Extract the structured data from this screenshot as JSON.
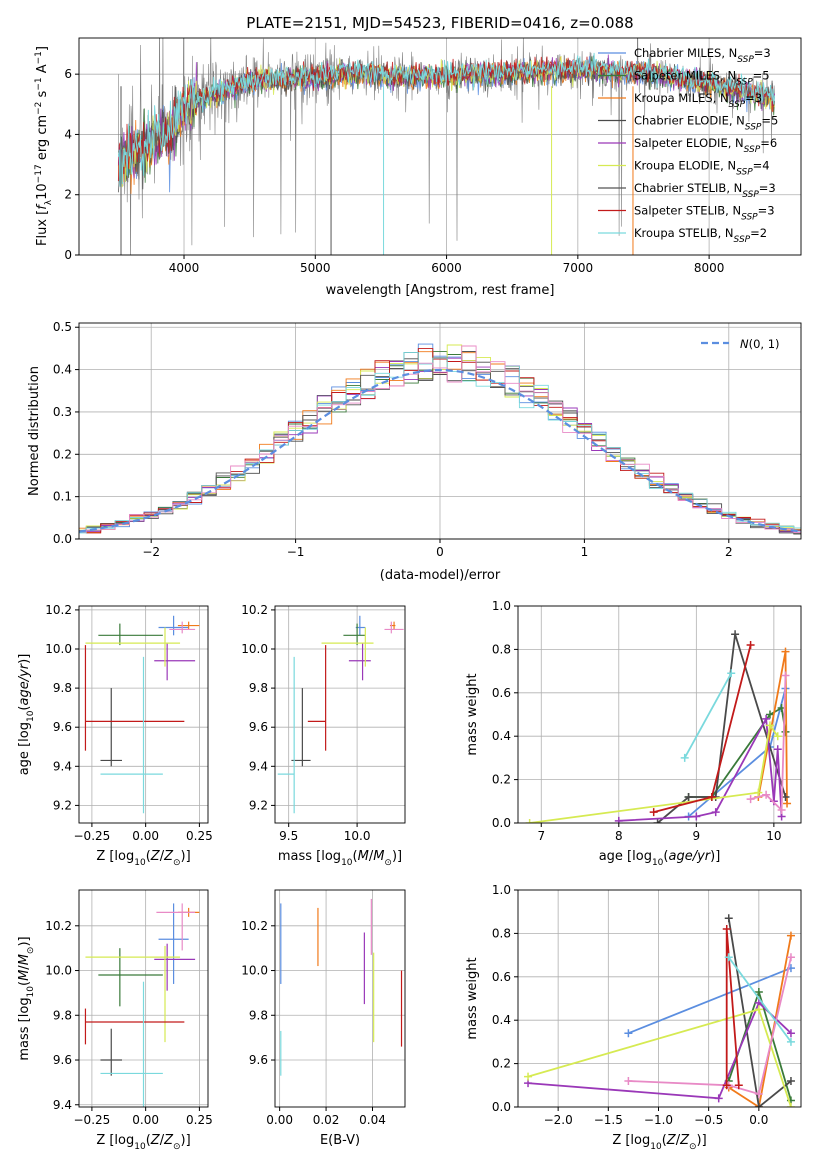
{
  "page_title": "PLATE=2151, MJD=54523, FIBERID=0416, z=0.088",
  "colors": {
    "Chabrier MILES": "#5b8ee0",
    "Salpeter MILES": "#3a7a3a",
    "Kroupa MILES": "#f07a1a",
    "Chabrier ELODIE": "#4a4a4a",
    "Salpeter ELODIE": "#9a38b8",
    "Kroupa ELODIE": "#d6ea52",
    "Chabrier STELIB": "#555555",
    "Salpeter STELIB": "#c21a1a",
    "Kroupa STELIB": "#7ad9dd",
    "pink": "#e88ac6",
    "normal": "#5b8ee0",
    "data": "#808080"
  },
  "chart_data": [
    {
      "id": "spectrum",
      "type": "line",
      "title": "PLATE=2151, MJD=54523, FIBERID=0416, z=0.088",
      "xlabel": "wavelength [Angstrom, rest frame]",
      "ylabel": "Flux [f_λ 10^-17 erg cm^-2 s^-1 A^-1]",
      "xlim": [
        3200,
        8700
      ],
      "ylim": [
        0,
        7.2
      ],
      "xticks": [
        "4000",
        "5000",
        "6000",
        "7000",
        "8000"
      ],
      "yticks": [
        "0",
        "2",
        "4",
        "6"
      ],
      "legend_position": "right",
      "legend": [
        {
          "label": "Chabrier MILES, N",
          "sub": "SSP",
          "suffix": "=3",
          "color": "#5b8ee0"
        },
        {
          "label": "Salpeter MILES, N",
          "sub": "SSP",
          "suffix": "=5",
          "color": "#3a7a3a"
        },
        {
          "label": "Kroupa MILES, N",
          "sub": "SSP",
          "suffix": "=3",
          "color": "#f07a1a"
        },
        {
          "label": "Chabrier ELODIE, N",
          "sub": "SSP",
          "suffix": "=5",
          "color": "#4a4a4a"
        },
        {
          "label": "Salpeter ELODIE, N",
          "sub": "SSP",
          "suffix": "=6",
          "color": "#9a38b8"
        },
        {
          "label": "Kroupa ELODIE, N",
          "sub": "SSP",
          "suffix": "=4",
          "color": "#d6ea52"
        },
        {
          "label": "Chabrier STELIB, N",
          "sub": "SSP",
          "suffix": "=3",
          "color": "#555555"
        },
        {
          "label": "Salpeter STELIB, N",
          "sub": "SSP",
          "suffix": "=3",
          "color": "#c21a1a"
        },
        {
          "label": "Kroupa STELIB, N",
          "sub": "SSP",
          "suffix": "=2",
          "color": "#7ad9dd"
        }
      ],
      "model_curve": {
        "x": [
          3500,
          3600,
          3700,
          3800,
          3900,
          4000,
          4100,
          4200,
          4300,
          4400,
          4500,
          4600,
          4800,
          5000,
          5200,
          5400,
          5600,
          5800,
          6000,
          6200,
          6400,
          6600,
          6800,
          7000,
          7200,
          7400,
          7600,
          7800,
          8000,
          8200,
          8400,
          8500
        ],
        "y": [
          3.0,
          3.3,
          3.6,
          3.9,
          4.1,
          4.9,
          5.1,
          5.3,
          5.4,
          5.6,
          5.75,
          5.8,
          5.85,
          5.9,
          6.0,
          6.05,
          5.9,
          5.95,
          5.9,
          6.0,
          6.0,
          6.1,
          6.1,
          6.15,
          6.1,
          6.05,
          6.0,
          5.85,
          5.7,
          5.5,
          5.3,
          5.2
        ]
      }
    },
    {
      "id": "residuals",
      "type": "histogram",
      "xlabel": "(data-model)/error",
      "ylabel": "Normed distribution",
      "xlim": [
        -2.5,
        2.5
      ],
      "ylim": [
        0,
        0.51
      ],
      "xticks": [
        "−2",
        "−1",
        "0",
        "1",
        "2"
      ],
      "yticks": [
        "0.0",
        "0.1",
        "0.2",
        "0.3",
        "0.4",
        "0.5"
      ],
      "legend_position": "top-right",
      "legend": [
        {
          "label": "N(0, 1)",
          "style": "dashed",
          "color": "#5b8ee0"
        }
      ],
      "normal_curve": {
        "mean": 0,
        "sigma": 1
      },
      "bin_width": 0.1
    },
    {
      "id": "age-vs-Z",
      "type": "errorbar",
      "xlabel": "Z [log10(Z/Z⊙)]",
      "ylabel": "age  [log10(age/yr)]",
      "xlim": [
        -0.31,
        0.29
      ],
      "ylim": [
        9.11,
        10.22
      ],
      "xticks": [
        "−0.25",
        "0.00",
        "0.25"
      ],
      "yticks": [
        "9.2",
        "9.4",
        "9.6",
        "9.8",
        "10.0",
        "10.2"
      ],
      "points": [
        {
          "series": "Chabrier MILES",
          "x": 0.13,
          "xerr": [
            0.07,
            0.07
          ],
          "y": 10.11,
          "yerr": [
            0.04,
            0.06
          ]
        },
        {
          "series": "Salpeter MILES",
          "x": -0.12,
          "xerr": [
            0.1,
            0.2
          ],
          "y": 10.07,
          "yerr": [
            0.05,
            0.06
          ]
        },
        {
          "series": "Kroupa MILES",
          "x": 0.2,
          "xerr": [
            0.05,
            0.05
          ],
          "y": 10.12,
          "yerr": [
            0.02,
            0.02
          ]
        },
        {
          "series": "Chabrier ELODIE",
          "x": -0.16,
          "xerr": [
            0.05,
            0.05
          ],
          "y": 9.43,
          "yerr": [
            0.03,
            0.37
          ]
        },
        {
          "series": "Salpeter ELODIE",
          "x": 0.1,
          "xerr": [
            0.06,
            0.13
          ],
          "y": 9.94,
          "yerr": [
            0.1,
            0.09
          ]
        },
        {
          "series": "Kroupa ELODIE",
          "x": 0.09,
          "xerr": [
            0.37,
            0.07
          ],
          "y": 10.03,
          "yerr": [
            0.12,
            0.08
          ]
        },
        {
          "series": "pink",
          "x": 0.17,
          "xerr": [
            0.06,
            0.06
          ],
          "y": 10.1,
          "yerr": [
            0.02,
            0.04
          ]
        },
        {
          "series": "Salpeter STELIB",
          "x": -0.28,
          "xerr": [
            0.0,
            0.46
          ],
          "y": 9.63,
          "yerr": [
            0.15,
            0.39
          ]
        },
        {
          "series": "Kroupa STELIB",
          "x": -0.01,
          "xerr": [
            0.2,
            0.09
          ],
          "y": 9.36,
          "yerr": [
            0.2,
            0.6
          ]
        }
      ]
    },
    {
      "id": "age-vs-mass",
      "type": "errorbar",
      "xlabel": "mass [log10(M/M⊙)]",
      "ylabel": "",
      "xlim": [
        9.4,
        10.35
      ],
      "ylim": [
        9.11,
        10.22
      ],
      "xticks": [
        "9.5",
        "10.0"
      ],
      "yticks": [
        "9.2",
        "9.4",
        "9.6",
        "9.8",
        "10.0",
        "10.2"
      ],
      "points": [
        {
          "series": "Chabrier MILES",
          "x": 10.02,
          "xerr": [
            0.03,
            0.04
          ],
          "y": 10.11,
          "yerr": [
            0.04,
            0.06
          ]
        },
        {
          "series": "Salpeter MILES",
          "x": 10.0,
          "xerr": [
            0.1,
            0.06
          ],
          "y": 10.07,
          "yerr": [
            0.05,
            0.06
          ]
        },
        {
          "series": "Kroupa MILES",
          "x": 10.27,
          "xerr": [
            0.03,
            0.01
          ],
          "y": 10.12,
          "yerr": [
            0.02,
            0.02
          ]
        },
        {
          "series": "Chabrier ELODIE",
          "x": 9.6,
          "xerr": [
            0.08,
            0.06
          ],
          "y": 9.43,
          "yerr": [
            0.03,
            0.37
          ]
        },
        {
          "series": "Salpeter ELODIE",
          "x": 10.04,
          "xerr": [
            0.1,
            0.06
          ],
          "y": 9.94,
          "yerr": [
            0.1,
            0.09
          ]
        },
        {
          "series": "Kroupa ELODIE",
          "x": 10.06,
          "xerr": [
            0.32,
            0.06
          ],
          "y": 10.03,
          "yerr": [
            0.12,
            0.08
          ]
        },
        {
          "series": "pink",
          "x": 10.25,
          "xerr": [
            0.05,
            0.09
          ],
          "y": 10.1,
          "yerr": [
            0.02,
            0.04
          ]
        },
        {
          "series": "Salpeter STELIB",
          "x": 9.77,
          "xerr": [
            0.13,
            0.0
          ],
          "y": 9.63,
          "yerr": [
            0.15,
            0.39
          ]
        },
        {
          "series": "Kroupa STELIB",
          "x": 9.54,
          "xerr": [
            0.12,
            0.0
          ],
          "y": 9.36,
          "yerr": [
            0.2,
            0.6
          ]
        }
      ]
    },
    {
      "id": "weight-vs-age",
      "type": "line",
      "xlabel": "age  [log10(age/yr)]",
      "ylabel": "mass weight",
      "xlim": [
        6.7,
        10.35
      ],
      "ylim": [
        0,
        1
      ],
      "xticks": [
        "7",
        "8",
        "9",
        "10"
      ],
      "yticks": [
        "0.0",
        "0.2",
        "0.4",
        "0.6",
        "0.8",
        "1.0"
      ],
      "series": [
        {
          "name": "Chabrier MILES",
          "x": [
            8.9,
            9.95,
            10.15
          ],
          "y": [
            0.03,
            0.35,
            0.62
          ]
        },
        {
          "name": "Salpeter MILES",
          "x": [
            8.9,
            9.2,
            9.95,
            10.1,
            10.15
          ],
          "y": [
            0.12,
            0.12,
            0.5,
            0.53,
            0.42
          ]
        },
        {
          "name": "Kroupa MILES",
          "x": [
            9.8,
            10.15,
            10.17
          ],
          "y": [
            0.12,
            0.79,
            0.09
          ]
        },
        {
          "name": "Chabrier ELODIE",
          "x": [
            8.5,
            8.9,
            9.25,
            9.5,
            10.15
          ],
          "y": [
            0.0,
            0.12,
            0.12,
            0.87,
            0.12
          ]
        },
        {
          "name": "Salpeter ELODIE",
          "x": [
            8.0,
            9.0,
            9.25,
            9.9,
            10.0,
            10.05,
            10.1
          ],
          "y": [
            0.01,
            0.03,
            0.05,
            0.48,
            0.1,
            0.34,
            0.03
          ]
        },
        {
          "name": "Kroupa ELODIE",
          "x": [
            6.85,
            9.8,
            9.95,
            10.05
          ],
          "y": [
            0.0,
            0.14,
            0.45,
            0.4
          ]
        },
        {
          "name": "pink",
          "x": [
            9.7,
            9.9,
            10.1,
            10.15
          ],
          "y": [
            0.11,
            0.13,
            0.06,
            0.68
          ]
        },
        {
          "name": "Salpeter STELIB",
          "x": [
            8.45,
            9.2,
            9.7
          ],
          "y": [
            0.05,
            0.12,
            0.82
          ]
        },
        {
          "name": "Kroupa STELIB",
          "x": [
            8.85,
            9.45
          ],
          "y": [
            0.3,
            0.69
          ]
        }
      ]
    },
    {
      "id": "mass-vs-Z",
      "type": "errorbar",
      "xlabel": "Z [log10(Z/Z⊙)]",
      "ylabel": "mass [log10(M/M⊙)]",
      "xlim": [
        -0.31,
        0.29
      ],
      "ylim": [
        9.39,
        10.36
      ],
      "xticks": [
        "−0.25",
        "0.00",
        "0.25"
      ],
      "yticks": [
        "9.4",
        "9.6",
        "9.8",
        "10.0",
        "10.2"
      ],
      "points": [
        {
          "series": "Chabrier MILES",
          "x": 0.13,
          "xerr": [
            0.07,
            0.07
          ],
          "y": 10.14,
          "yerr": [
            0.2,
            0.16
          ]
        },
        {
          "series": "Salpeter MILES",
          "x": -0.12,
          "xerr": [
            0.1,
            0.2
          ],
          "y": 9.98,
          "yerr": [
            0.14,
            0.12
          ]
        },
        {
          "series": "Kroupa MILES",
          "x": 0.2,
          "xerr": [
            0.05,
            0.05
          ],
          "y": 10.26,
          "yerr": [
            0.02,
            0.02
          ]
        },
        {
          "series": "Chabrier ELODIE",
          "x": -0.16,
          "xerr": [
            0.05,
            0.05
          ],
          "y": 9.6,
          "yerr": [
            0.07,
            0.14
          ]
        },
        {
          "series": "Salpeter ELODIE",
          "x": 0.1,
          "xerr": [
            0.06,
            0.13
          ],
          "y": 10.05,
          "yerr": [
            0.14,
            0.07
          ]
        },
        {
          "series": "Kroupa ELODIE",
          "x": 0.09,
          "xerr": [
            0.37,
            0.07
          ],
          "y": 10.06,
          "yerr": [
            0.38,
            0.05
          ]
        },
        {
          "series": "pink",
          "x": 0.17,
          "xerr": [
            0.12,
            0.06
          ],
          "y": 10.26,
          "yerr": [
            0.17,
            0.04
          ]
        },
        {
          "series": "Salpeter STELIB",
          "x": -0.28,
          "xerr": [
            0.0,
            0.46
          ],
          "y": 9.77,
          "yerr": [
            0.1,
            0.06
          ]
        },
        {
          "series": "Kroupa STELIB",
          "x": -0.01,
          "xerr": [
            0.2,
            0.09
          ],
          "y": 9.54,
          "yerr": [
            0.15,
            0.41
          ]
        }
      ]
    },
    {
      "id": "mass-vs-ebv",
      "type": "errorbar",
      "xlabel": "E(B-V)",
      "ylabel": "",
      "xlim": [
        -0.002,
        0.054
      ],
      "ylim": [
        9.39,
        10.36
      ],
      "xticks": [
        "0.00",
        "0.02",
        "0.04"
      ],
      "yticks": [
        "9.6",
        "9.8",
        "10.0",
        "10.2"
      ],
      "points": [
        {
          "series": "Chabrier MILES",
          "x": 0.0005,
          "y": 10.14,
          "yerr": [
            0.2,
            0.16
          ]
        },
        {
          "series": "Kroupa MILES",
          "x": 0.0165,
          "y": 10.14,
          "yerr": [
            0.12,
            0.14
          ]
        },
        {
          "series": "Salpeter ELODIE",
          "x": 0.0365,
          "y": 10.01,
          "yerr": [
            0.16,
            0.16
          ]
        },
        {
          "series": "pink",
          "x": 0.0395,
          "y": 10.17,
          "yerr": [
            0.1,
            0.15
          ]
        },
        {
          "series": "Kroupa ELODIE",
          "x": 0.0405,
          "y": 9.88,
          "yerr": [
            0.2,
            0.2
          ]
        },
        {
          "series": "Salpeter STELIB",
          "x": 0.0525,
          "y": 9.83,
          "yerr": [
            0.17,
            0.17
          ]
        },
        {
          "series": "Kroupa STELIB",
          "x": 0.0005,
          "y": 9.63,
          "yerr": [
            0.1,
            0.1
          ]
        }
      ]
    },
    {
      "id": "weight-vs-Z",
      "type": "line",
      "xlabel": "Z [log10(Z/Z⊙)]",
      "ylabel": "mass weight",
      "xlim": [
        -2.4,
        0.42
      ],
      "ylim": [
        0,
        1
      ],
      "xticks": [
        "−2.0",
        "−1.5",
        "−1.0",
        "−0.5",
        "0.0"
      ],
      "yticks": [
        "0.0",
        "0.2",
        "0.4",
        "0.6",
        "0.8",
        "1.0"
      ],
      "series": [
        {
          "name": "Chabrier MILES",
          "x": [
            -1.3,
            0.32
          ],
          "y": [
            0.34,
            0.64
          ]
        },
        {
          "name": "Salpeter MILES",
          "x": [
            -0.3,
            0.0,
            0.32
          ],
          "y": [
            0.12,
            0.53,
            0.03
          ]
        },
        {
          "name": "Kroupa MILES",
          "x": [
            -0.3,
            0.0,
            0.32
          ],
          "y": [
            0.09,
            0.0,
            0.79
          ]
        },
        {
          "name": "Chabrier ELODIE",
          "x": [
            -0.3,
            0.0,
            0.32
          ],
          "y": [
            0.87,
            0.0,
            0.12
          ]
        },
        {
          "name": "Salpeter ELODIE",
          "x": [
            -2.3,
            -0.4,
            0.0,
            0.32
          ],
          "y": [
            0.11,
            0.04,
            0.48,
            0.34
          ]
        },
        {
          "name": "Kroupa ELODIE",
          "x": [
            -2.3,
            0.0,
            0.32
          ],
          "y": [
            0.14,
            0.45,
            0.0
          ]
        },
        {
          "name": "pink",
          "x": [
            -1.3,
            -0.3,
            0.0,
            0.32
          ],
          "y": [
            0.12,
            0.1,
            0.06,
            0.69
          ]
        },
        {
          "name": "Salpeter STELIB",
          "x": [
            -0.32,
            -0.32,
            -0.2
          ],
          "y": [
            0.1,
            0.82,
            0.1
          ]
        },
        {
          "name": "Kroupa STELIB",
          "x": [
            -0.3,
            0.32
          ],
          "y": [
            0.69,
            0.3
          ]
        }
      ]
    }
  ]
}
